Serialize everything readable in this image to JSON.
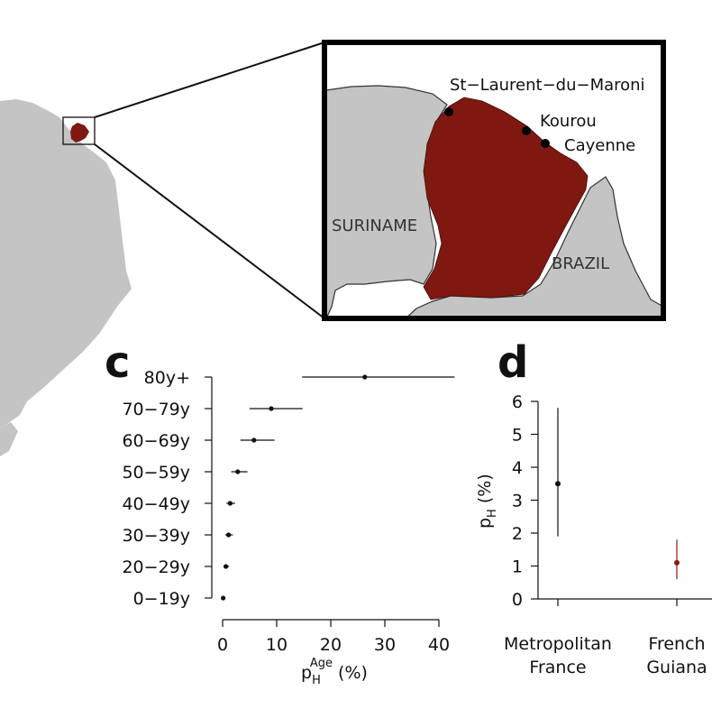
{
  "colors": {
    "land": "#c4c4c4",
    "guiana": "#7e1811",
    "ink": "#111111",
    "dot_d_france": "#111111",
    "dot_d_guiana": "#8b1a10"
  },
  "map": {
    "cities": [
      {
        "name": "St−Laurent−du−Maroni"
      },
      {
        "name": "Kourou"
      },
      {
        "name": "Cayenne"
      }
    ],
    "countries": {
      "suriname": "SURINAME",
      "brazil": "BRAZIL"
    }
  },
  "chart_data": [
    {
      "panel": "c",
      "type": "scatter",
      "orientation": "horizontal",
      "categories": [
        "0−19y",
        "20−29y",
        "30−39y",
        "40−49y",
        "50−59y",
        "60−69y",
        "70−79y",
        "80y+"
      ],
      "estimates": [
        0.1,
        0.6,
        1.1,
        1.4,
        2.8,
        5.8,
        9.0,
        26.3
      ],
      "lower": [
        0.0,
        0.2,
        0.5,
        0.7,
        1.6,
        3.3,
        5.0,
        14.7
      ],
      "upper": [
        0.4,
        1.2,
        1.9,
        2.3,
        4.6,
        9.6,
        14.8,
        42.9
      ],
      "xlabel_main": "p",
      "xlabel_sub": "H",
      "xlabel_sup": "Age",
      "xlabel_unit": " (%)",
      "xlim": [
        0,
        43
      ],
      "xticks": [
        "0",
        "10",
        "20",
        "30",
        "40"
      ]
    },
    {
      "panel": "d",
      "type": "scatter",
      "categories": [
        {
          "line1": "Metropolitan",
          "line2": "France"
        },
        {
          "line1": "French",
          "line2": "Guiana"
        }
      ],
      "estimates": [
        3.5,
        1.1
      ],
      "lower": [
        1.9,
        0.6
      ],
      "upper": [
        5.8,
        1.8
      ],
      "ylabel_main": "p",
      "ylabel_sub": "H",
      "ylabel_unit": " (%)",
      "ylim": [
        0,
        6
      ],
      "yticks": [
        "0",
        "1",
        "2",
        "3",
        "4",
        "5",
        "6"
      ]
    }
  ]
}
